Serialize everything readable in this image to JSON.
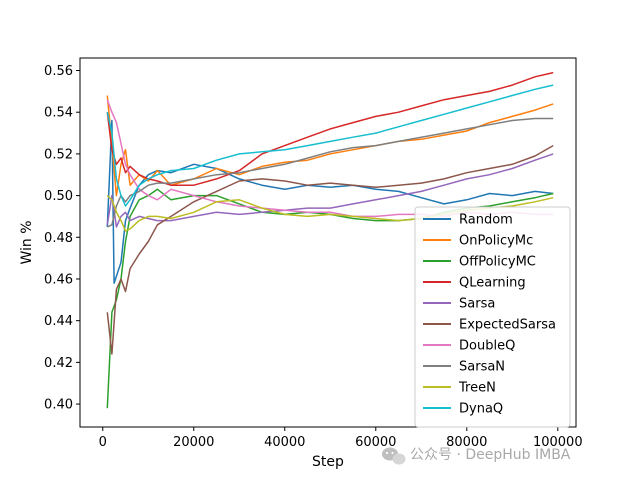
{
  "chart_data": {
    "type": "line",
    "title": "",
    "xlabel": "Step",
    "ylabel": "Win %",
    "xlim": [
      -5000,
      104000
    ],
    "ylim": [
      0.389,
      0.566
    ],
    "xticks": [
      0,
      20000,
      40000,
      60000,
      80000,
      100000
    ],
    "xtick_labels": [
      "0",
      "20000",
      "40000",
      "60000",
      "80000",
      "100000"
    ],
    "yticks": [
      0.4,
      0.42,
      0.44,
      0.46,
      0.48,
      0.5,
      0.52,
      0.54,
      0.56
    ],
    "ytick_labels": [
      "0.40",
      "0.42",
      "0.44",
      "0.46",
      "0.48",
      "0.50",
      "0.52",
      "0.54",
      "0.56"
    ],
    "grid": false,
    "legend_position": "lower-right",
    "series": [
      {
        "name": "Random",
        "color": "#1f77b4",
        "points": [
          [
            1000,
            0.485
          ],
          [
            2000,
            0.536
          ],
          [
            2500,
            0.458
          ],
          [
            4000,
            0.468
          ],
          [
            5000,
            0.488
          ],
          [
            6000,
            0.494
          ],
          [
            8000,
            0.505
          ],
          [
            10000,
            0.51
          ],
          [
            12000,
            0.512
          ],
          [
            15000,
            0.511
          ],
          [
            20000,
            0.515
          ],
          [
            25000,
            0.513
          ],
          [
            30000,
            0.508
          ],
          [
            35000,
            0.505
          ],
          [
            40000,
            0.503
          ],
          [
            45000,
            0.505
          ],
          [
            50000,
            0.504
          ],
          [
            55000,
            0.505
          ],
          [
            60000,
            0.503
          ],
          [
            65000,
            0.502
          ],
          [
            70000,
            0.499
          ],
          [
            75000,
            0.496
          ],
          [
            80000,
            0.498
          ],
          [
            85000,
            0.501
          ],
          [
            90000,
            0.5
          ],
          [
            95000,
            0.502
          ],
          [
            99000,
            0.501
          ]
        ]
      },
      {
        "name": "OnPolicyMc",
        "color": "#ff7f0e",
        "points": [
          [
            1000,
            0.548
          ],
          [
            2000,
            0.525
          ],
          [
            3000,
            0.5
          ],
          [
            4000,
            0.515
          ],
          [
            5000,
            0.522
          ],
          [
            6000,
            0.505
          ],
          [
            8000,
            0.51
          ],
          [
            10000,
            0.507
          ],
          [
            12000,
            0.512
          ],
          [
            15000,
            0.505
          ],
          [
            20000,
            0.508
          ],
          [
            25000,
            0.513
          ],
          [
            30000,
            0.51
          ],
          [
            35000,
            0.514
          ],
          [
            40000,
            0.516
          ],
          [
            45000,
            0.517
          ],
          [
            50000,
            0.52
          ],
          [
            55000,
            0.522
          ],
          [
            60000,
            0.524
          ],
          [
            65000,
            0.526
          ],
          [
            70000,
            0.527
          ],
          [
            75000,
            0.529
          ],
          [
            80000,
            0.531
          ],
          [
            85000,
            0.535
          ],
          [
            90000,
            0.538
          ],
          [
            95000,
            0.541
          ],
          [
            99000,
            0.544
          ]
        ]
      },
      {
        "name": "OffPolicyMC",
        "color": "#2ca02c",
        "points": [
          [
            1000,
            0.398
          ],
          [
            2000,
            0.444
          ],
          [
            3000,
            0.45
          ],
          [
            4000,
            0.46
          ],
          [
            5000,
            0.478
          ],
          [
            6000,
            0.49
          ],
          [
            8000,
            0.498
          ],
          [
            10000,
            0.5
          ],
          [
            12000,
            0.503
          ],
          [
            15000,
            0.498
          ],
          [
            20000,
            0.5
          ],
          [
            25000,
            0.5
          ],
          [
            30000,
            0.496
          ],
          [
            35000,
            0.492
          ],
          [
            40000,
            0.491
          ],
          [
            45000,
            0.492
          ],
          [
            50000,
            0.491
          ],
          [
            55000,
            0.489
          ],
          [
            60000,
            0.488
          ],
          [
            65000,
            0.488
          ],
          [
            70000,
            0.489
          ],
          [
            75000,
            0.492
          ],
          [
            80000,
            0.494
          ],
          [
            85000,
            0.495
          ],
          [
            90000,
            0.497
          ],
          [
            95000,
            0.499
          ],
          [
            99000,
            0.501
          ]
        ]
      },
      {
        "name": "QLearning",
        "color": "#d62728",
        "points": [
          [
            1000,
            0.54
          ],
          [
            2000,
            0.522
          ],
          [
            3000,
            0.515
          ],
          [
            4000,
            0.518
          ],
          [
            5000,
            0.511
          ],
          [
            6000,
            0.514
          ],
          [
            8000,
            0.51
          ],
          [
            10000,
            0.508
          ],
          [
            12000,
            0.507
          ],
          [
            15000,
            0.505
          ],
          [
            20000,
            0.505
          ],
          [
            25000,
            0.508
          ],
          [
            30000,
            0.512
          ],
          [
            35000,
            0.52
          ],
          [
            40000,
            0.524
          ],
          [
            45000,
            0.528
          ],
          [
            50000,
            0.532
          ],
          [
            55000,
            0.535
          ],
          [
            60000,
            0.538
          ],
          [
            65000,
            0.54
          ],
          [
            70000,
            0.543
          ],
          [
            75000,
            0.546
          ],
          [
            80000,
            0.548
          ],
          [
            85000,
            0.55
          ],
          [
            90000,
            0.553
          ],
          [
            95000,
            0.557
          ],
          [
            99000,
            0.559
          ]
        ]
      },
      {
        "name": "Sarsa",
        "color": "#9467bd",
        "points": [
          [
            1000,
            0.486
          ],
          [
            2000,
            0.5
          ],
          [
            3000,
            0.485
          ],
          [
            4000,
            0.49
          ],
          [
            5000,
            0.492
          ],
          [
            6000,
            0.488
          ],
          [
            8000,
            0.49
          ],
          [
            10000,
            0.489
          ],
          [
            12000,
            0.488
          ],
          [
            15000,
            0.488
          ],
          [
            20000,
            0.49
          ],
          [
            25000,
            0.492
          ],
          [
            30000,
            0.491
          ],
          [
            35000,
            0.492
          ],
          [
            40000,
            0.493
          ],
          [
            45000,
            0.494
          ],
          [
            50000,
            0.494
          ],
          [
            55000,
            0.496
          ],
          [
            60000,
            0.498
          ],
          [
            65000,
            0.5
          ],
          [
            70000,
            0.502
          ],
          [
            75000,
            0.505
          ],
          [
            80000,
            0.508
          ],
          [
            85000,
            0.51
          ],
          [
            90000,
            0.513
          ],
          [
            95000,
            0.517
          ],
          [
            99000,
            0.52
          ]
        ]
      },
      {
        "name": "ExpectedSarsa",
        "color": "#8c564b",
        "points": [
          [
            1000,
            0.444
          ],
          [
            2000,
            0.424
          ],
          [
            3000,
            0.455
          ],
          [
            4000,
            0.46
          ],
          [
            5000,
            0.454
          ],
          [
            6000,
            0.465
          ],
          [
            8000,
            0.472
          ],
          [
            10000,
            0.478
          ],
          [
            12000,
            0.486
          ],
          [
            15000,
            0.49
          ],
          [
            20000,
            0.497
          ],
          [
            25000,
            0.502
          ],
          [
            30000,
            0.507
          ],
          [
            35000,
            0.508
          ],
          [
            40000,
            0.507
          ],
          [
            45000,
            0.505
          ],
          [
            50000,
            0.506
          ],
          [
            55000,
            0.505
          ],
          [
            60000,
            0.504
          ],
          [
            65000,
            0.505
          ],
          [
            70000,
            0.506
          ],
          [
            75000,
            0.508
          ],
          [
            80000,
            0.511
          ],
          [
            85000,
            0.513
          ],
          [
            90000,
            0.515
          ],
          [
            95000,
            0.519
          ],
          [
            99000,
            0.524
          ]
        ]
      },
      {
        "name": "DoubleQ",
        "color": "#e377c2",
        "points": [
          [
            1000,
            0.546
          ],
          [
            2000,
            0.54
          ],
          [
            3000,
            0.535
          ],
          [
            4000,
            0.525
          ],
          [
            5000,
            0.515
          ],
          [
            6000,
            0.51
          ],
          [
            8000,
            0.503
          ],
          [
            10000,
            0.5
          ],
          [
            12000,
            0.498
          ],
          [
            15000,
            0.503
          ],
          [
            20000,
            0.5
          ],
          [
            25000,
            0.497
          ],
          [
            30000,
            0.495
          ],
          [
            35000,
            0.494
          ],
          [
            40000,
            0.493
          ],
          [
            45000,
            0.492
          ],
          [
            50000,
            0.492
          ],
          [
            55000,
            0.49
          ],
          [
            60000,
            0.49
          ],
          [
            65000,
            0.491
          ],
          [
            70000,
            0.491
          ],
          [
            75000,
            0.49
          ],
          [
            80000,
            0.492
          ],
          [
            85000,
            0.491
          ],
          [
            90000,
            0.492
          ],
          [
            95000,
            0.491
          ],
          [
            99000,
            0.491
          ]
        ]
      },
      {
        "name": "SarsaN",
        "color": "#7f7f7f",
        "points": [
          [
            1000,
            0.485
          ],
          [
            2000,
            0.486
          ],
          [
            3000,
            0.495
          ],
          [
            4000,
            0.5
          ],
          [
            5000,
            0.497
          ],
          [
            6000,
            0.5
          ],
          [
            8000,
            0.502
          ],
          [
            10000,
            0.505
          ],
          [
            12000,
            0.506
          ],
          [
            15000,
            0.506
          ],
          [
            20000,
            0.508
          ],
          [
            25000,
            0.51
          ],
          [
            30000,
            0.511
          ],
          [
            35000,
            0.513
          ],
          [
            40000,
            0.515
          ],
          [
            45000,
            0.518
          ],
          [
            50000,
            0.521
          ],
          [
            55000,
            0.523
          ],
          [
            60000,
            0.524
          ],
          [
            65000,
            0.526
          ],
          [
            70000,
            0.528
          ],
          [
            75000,
            0.53
          ],
          [
            80000,
            0.532
          ],
          [
            85000,
            0.534
          ],
          [
            90000,
            0.536
          ],
          [
            95000,
            0.537
          ],
          [
            99000,
            0.537
          ]
        ]
      },
      {
        "name": "TreeN",
        "color": "#bcbd22",
        "points": [
          [
            1000,
            0.5
          ],
          [
            2000,
            0.498
          ],
          [
            3000,
            0.492
          ],
          [
            4000,
            0.488
          ],
          [
            5000,
            0.483
          ],
          [
            6000,
            0.484
          ],
          [
            8000,
            0.488
          ],
          [
            10000,
            0.49
          ],
          [
            12000,
            0.49
          ],
          [
            15000,
            0.489
          ],
          [
            20000,
            0.492
          ],
          [
            25000,
            0.497
          ],
          [
            30000,
            0.498
          ],
          [
            35000,
            0.494
          ],
          [
            40000,
            0.491
          ],
          [
            45000,
            0.49
          ],
          [
            50000,
            0.491
          ],
          [
            55000,
            0.49
          ],
          [
            60000,
            0.489
          ],
          [
            65000,
            0.488
          ],
          [
            70000,
            0.489
          ],
          [
            75000,
            0.491
          ],
          [
            80000,
            0.493
          ],
          [
            85000,
            0.494
          ],
          [
            90000,
            0.495
          ],
          [
            95000,
            0.497
          ],
          [
            99000,
            0.499
          ]
        ]
      },
      {
        "name": "DynaQ",
        "color": "#17becf",
        "points": [
          [
            1000,
            0.54
          ],
          [
            2000,
            0.53
          ],
          [
            3000,
            0.508
          ],
          [
            4000,
            0.5
          ],
          [
            5000,
            0.495
          ],
          [
            6000,
            0.498
          ],
          [
            8000,
            0.505
          ],
          [
            10000,
            0.508
          ],
          [
            12000,
            0.51
          ],
          [
            15000,
            0.512
          ],
          [
            20000,
            0.513
          ],
          [
            25000,
            0.517
          ],
          [
            30000,
            0.52
          ],
          [
            35000,
            0.521
          ],
          [
            40000,
            0.522
          ],
          [
            45000,
            0.524
          ],
          [
            50000,
            0.526
          ],
          [
            55000,
            0.528
          ],
          [
            60000,
            0.53
          ],
          [
            65000,
            0.533
          ],
          [
            70000,
            0.536
          ],
          [
            75000,
            0.539
          ],
          [
            80000,
            0.542
          ],
          [
            85000,
            0.545
          ],
          [
            90000,
            0.548
          ],
          [
            95000,
            0.551
          ],
          [
            99000,
            0.553
          ]
        ]
      }
    ]
  },
  "watermark": {
    "text": "公众号 · DeepHub IMBA",
    "icon": "wechat-icon"
  }
}
